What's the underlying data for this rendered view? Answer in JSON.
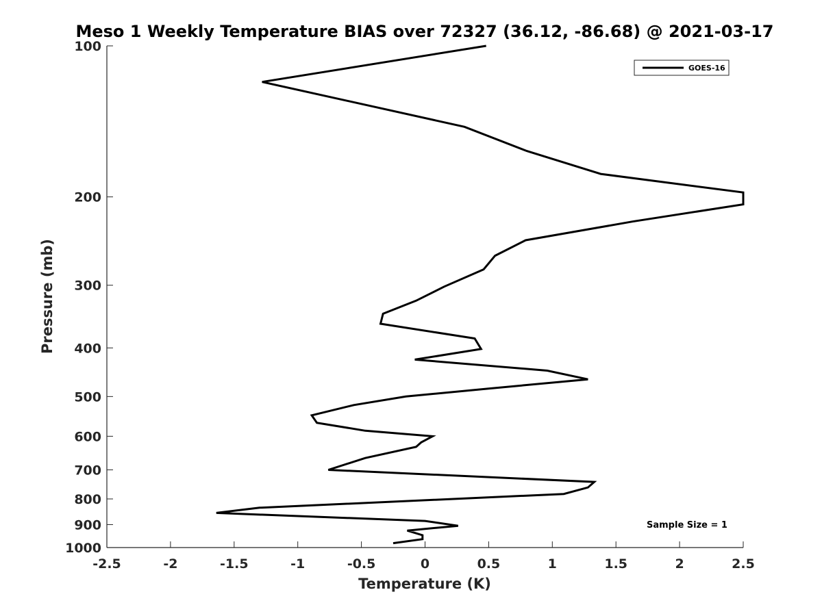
{
  "chart_data": {
    "type": "line",
    "title": "Meso 1 Weekly Temperature BIAS over 72327 (36.12, -86.68) @ 2021-03-17",
    "xlabel": "Temperature (K)",
    "ylabel": "Pressure (mb)",
    "xlim": [
      -2.5,
      2.5
    ],
    "ylim": [
      100,
      1000
    ],
    "yscale": "log",
    "yreversed": true,
    "grid": false,
    "x_ticks": [
      -2.5,
      -2,
      -1.5,
      -1,
      -0.5,
      0,
      0.5,
      1,
      1.5,
      2,
      2.5
    ],
    "x_tick_labels": [
      "-2.5",
      "-2",
      "-1.5",
      "-1",
      "-0.5",
      "0",
      "0.5",
      "1",
      "1.5",
      "2",
      "2.5"
    ],
    "y_ticks": [
      100,
      200,
      300,
      400,
      500,
      600,
      700,
      800,
      900,
      1000
    ],
    "y_tick_labels": [
      "100",
      "200",
      "300",
      "400",
      "500",
      "600",
      "700",
      "800",
      "900",
      "1000"
    ],
    "legend_position": "top-right",
    "annotation": "Sample Size = 1",
    "series": [
      {
        "name": "GOES-16",
        "color": "#000000",
        "points": [
          {
            "x": 0.48,
            "p": 100
          },
          {
            "x": -1.28,
            "p": 118
          },
          {
            "x": 0.31,
            "p": 145
          },
          {
            "x": 0.8,
            "p": 162
          },
          {
            "x": 1.38,
            "p": 180
          },
          {
            "x": 2.5,
            "p": 196
          },
          {
            "x": 2.5,
            "p": 207
          },
          {
            "x": 1.63,
            "p": 224
          },
          {
            "x": 0.79,
            "p": 244
          },
          {
            "x": 0.55,
            "p": 262
          },
          {
            "x": 0.46,
            "p": 279
          },
          {
            "x": 0.15,
            "p": 302
          },
          {
            "x": -0.07,
            "p": 322
          },
          {
            "x": -0.33,
            "p": 342
          },
          {
            "x": -0.35,
            "p": 358
          },
          {
            "x": 0.39,
            "p": 383
          },
          {
            "x": 0.44,
            "p": 402
          },
          {
            "x": -0.08,
            "p": 422
          },
          {
            "x": 0.96,
            "p": 444
          },
          {
            "x": 1.28,
            "p": 462
          },
          {
            "x": 0.5,
            "p": 482
          },
          {
            "x": -0.15,
            "p": 500
          },
          {
            "x": -0.56,
            "p": 520
          },
          {
            "x": -0.89,
            "p": 545
          },
          {
            "x": -0.85,
            "p": 564
          },
          {
            "x": -0.47,
            "p": 585
          },
          {
            "x": 0.06,
            "p": 600
          },
          {
            "x": -0.03,
            "p": 617
          },
          {
            "x": -0.07,
            "p": 630
          },
          {
            "x": -0.47,
            "p": 663
          },
          {
            "x": -0.76,
            "p": 700
          },
          {
            "x": 1.33,
            "p": 740
          },
          {
            "x": 1.28,
            "p": 759
          },
          {
            "x": 1.09,
            "p": 782
          },
          {
            "x": -1.3,
            "p": 833
          },
          {
            "x": -1.64,
            "p": 853
          },
          {
            "x": 0.0,
            "p": 885
          },
          {
            "x": 0.26,
            "p": 905
          },
          {
            "x": -0.14,
            "p": 925
          },
          {
            "x": -0.02,
            "p": 945
          },
          {
            "x": -0.02,
            "p": 962
          },
          {
            "x": -0.25,
            "p": 980
          }
        ]
      }
    ]
  }
}
